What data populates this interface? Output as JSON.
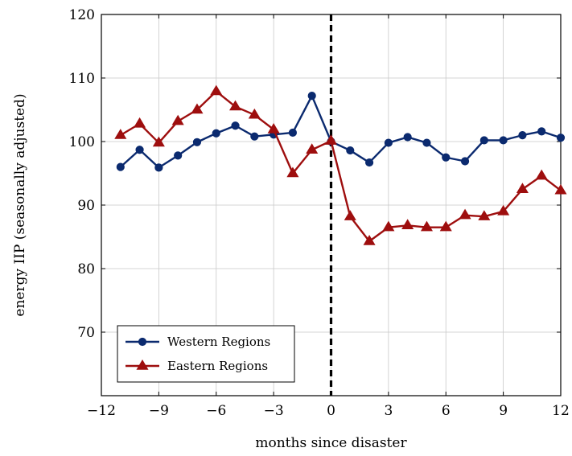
{
  "chart_data": {
    "type": "line",
    "title": "",
    "xlabel": "months since disaster",
    "ylabel": "energy IIP (seasonally adjusted)",
    "xlim": [
      -12,
      12
    ],
    "ylim": [
      60,
      120
    ],
    "xticks": [
      -12,
      -9,
      -6,
      -3,
      0,
      3,
      6,
      9,
      12
    ],
    "xtick_labels": [
      "−12",
      "−9",
      "−6",
      "−3",
      "0",
      "3",
      "6",
      "9",
      "12"
    ],
    "yticks": [
      70,
      80,
      90,
      100,
      110,
      120
    ],
    "ytick_labels": [
      "70",
      "80",
      "90",
      "100",
      "110",
      "120"
    ],
    "grid": true,
    "legend_position": "bottom-left",
    "vline": {
      "x": 0,
      "style": "dashed",
      "color": "#000000"
    },
    "series": [
      {
        "name": "Western Regions",
        "color": "#0b2a6f",
        "marker": "circle",
        "x": [
          -11,
          -10,
          -9,
          -8,
          -7,
          -6,
          -5,
          -4,
          -3,
          -2,
          -1,
          0,
          1,
          2,
          3,
          4,
          5,
          6,
          7,
          8,
          9,
          10,
          11,
          12
        ],
        "y": [
          96.0,
          98.7,
          95.9,
          97.8,
          99.9,
          101.3,
          102.5,
          100.8,
          101.1,
          101.4,
          107.2,
          100.0,
          98.6,
          96.7,
          99.8,
          100.7,
          99.8,
          97.5,
          96.9,
          100.2,
          100.2,
          101.0,
          101.6,
          100.6
        ]
      },
      {
        "name": "Eastern Regions",
        "color": "#9e0e0e",
        "marker": "triangle",
        "x": [
          -11,
          -10,
          -9,
          -8,
          -7,
          -6,
          -5,
          -4,
          -3,
          -2,
          -1,
          0,
          1,
          2,
          3,
          4,
          5,
          6,
          7,
          8,
          9,
          10,
          11,
          12
        ],
        "y": [
          101.0,
          102.8,
          99.8,
          103.2,
          105.0,
          107.9,
          105.5,
          104.2,
          101.9,
          95.0,
          98.7,
          100.1,
          88.2,
          84.3,
          86.5,
          86.8,
          86.5,
          86.5,
          88.4,
          88.2,
          89.0,
          92.5,
          94.6,
          92.3
        ]
      }
    ]
  }
}
